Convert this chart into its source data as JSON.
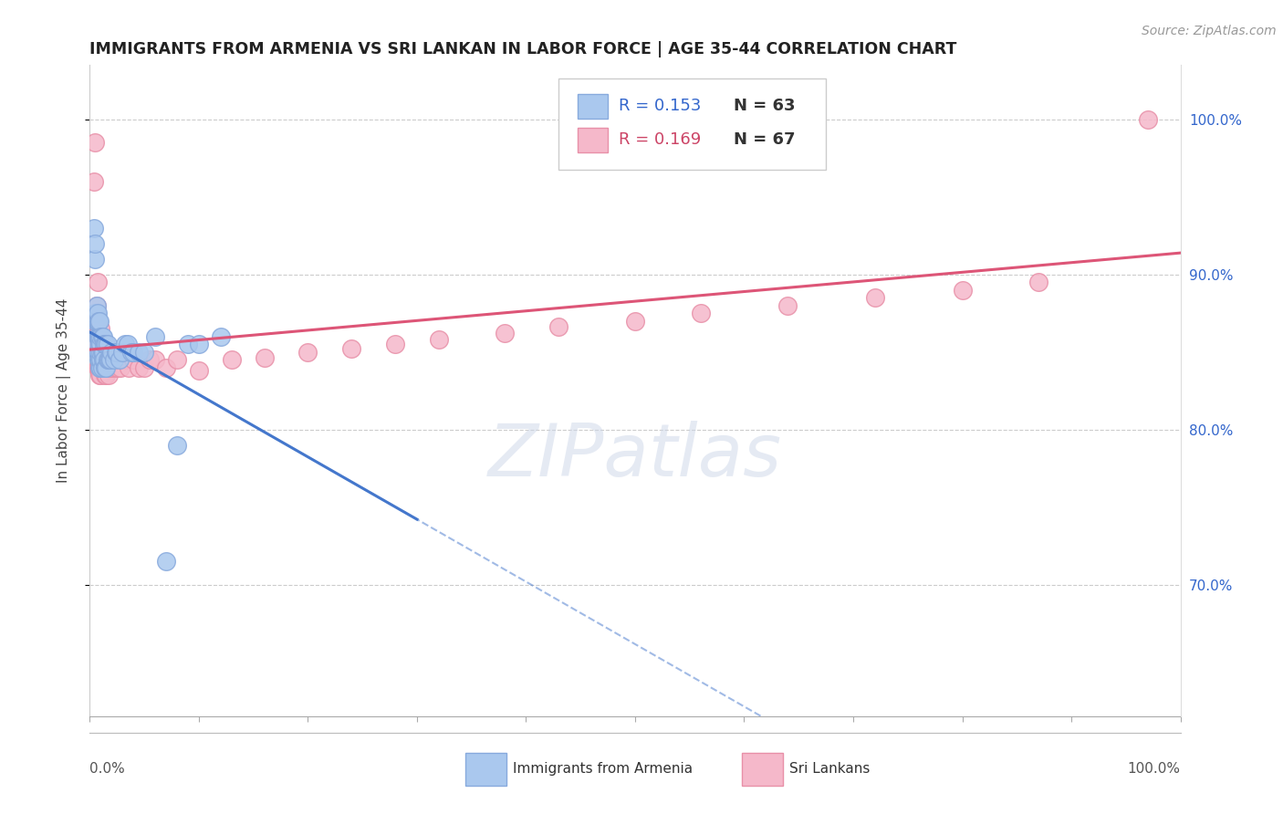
{
  "title": "IMMIGRANTS FROM ARMENIA VS SRI LANKAN IN LABOR FORCE | AGE 35-44 CORRELATION CHART",
  "source": "Source: ZipAtlas.com",
  "ylabel": "In Labor Force | Age 35-44",
  "xlim": [
    0.0,
    1.0
  ],
  "ylim": [
    0.615,
    1.035
  ],
  "yticks": [
    0.7,
    0.8,
    0.9,
    1.0
  ],
  "ytick_labels": [
    "70.0%",
    "80.0%",
    "90.0%",
    "100.0%"
  ],
  "legend_r1": "R = 0.153",
  "legend_n1": "N = 63",
  "legend_r2": "R = 0.169",
  "legend_n2": "N = 67",
  "armenia_color": "#aac8ee",
  "srilanka_color": "#f5b8ca",
  "armenia_edge": "#88aadd",
  "srilanka_edge": "#e890a8",
  "trend_blue": "#4477cc",
  "trend_pink": "#dd5577",
  "watermark": "ZIPatlas",
  "armenia_x": [
    0.003,
    0.004,
    0.005,
    0.005,
    0.005,
    0.005,
    0.006,
    0.006,
    0.006,
    0.007,
    0.007,
    0.007,
    0.007,
    0.008,
    0.008,
    0.008,
    0.008,
    0.008,
    0.009,
    0.009,
    0.009,
    0.009,
    0.009,
    0.01,
    0.01,
    0.01,
    0.01,
    0.01,
    0.011,
    0.011,
    0.011,
    0.012,
    0.012,
    0.012,
    0.013,
    0.013,
    0.014,
    0.014,
    0.015,
    0.015,
    0.016,
    0.016,
    0.017,
    0.018,
    0.019,
    0.02,
    0.022,
    0.024,
    0.025,
    0.027,
    0.03,
    0.032,
    0.035,
    0.038,
    0.04,
    0.045,
    0.05,
    0.06,
    0.07,
    0.08,
    0.09,
    0.1,
    0.12
  ],
  "armenia_y": [
    0.855,
    0.93,
    0.91,
    0.875,
    0.92,
    0.87,
    0.87,
    0.875,
    0.88,
    0.85,
    0.87,
    0.86,
    0.875,
    0.845,
    0.85,
    0.86,
    0.86,
    0.87,
    0.84,
    0.845,
    0.855,
    0.86,
    0.87,
    0.84,
    0.845,
    0.85,
    0.855,
    0.86,
    0.84,
    0.85,
    0.86,
    0.845,
    0.85,
    0.86,
    0.845,
    0.855,
    0.84,
    0.855,
    0.84,
    0.855,
    0.845,
    0.855,
    0.845,
    0.845,
    0.845,
    0.85,
    0.845,
    0.85,
    0.85,
    0.845,
    0.85,
    0.855,
    0.855,
    0.85,
    0.85,
    0.85,
    0.85,
    0.86,
    0.715,
    0.79,
    0.855,
    0.855,
    0.86
  ],
  "srilanka_x": [
    0.003,
    0.004,
    0.004,
    0.005,
    0.005,
    0.005,
    0.006,
    0.006,
    0.006,
    0.007,
    0.007,
    0.007,
    0.007,
    0.008,
    0.008,
    0.008,
    0.009,
    0.009,
    0.009,
    0.009,
    0.01,
    0.01,
    0.01,
    0.01,
    0.011,
    0.011,
    0.012,
    0.012,
    0.013,
    0.013,
    0.014,
    0.015,
    0.016,
    0.017,
    0.018,
    0.019,
    0.02,
    0.022,
    0.024,
    0.026,
    0.028,
    0.03,
    0.033,
    0.036,
    0.04,
    0.045,
    0.05,
    0.055,
    0.06,
    0.07,
    0.08,
    0.1,
    0.13,
    0.16,
    0.2,
    0.24,
    0.28,
    0.32,
    0.38,
    0.43,
    0.5,
    0.56,
    0.64,
    0.72,
    0.8,
    0.87,
    0.97
  ],
  "srilanka_y": [
    0.87,
    0.87,
    0.96,
    0.875,
    0.985,
    0.87,
    0.87,
    0.875,
    0.88,
    0.84,
    0.855,
    0.87,
    0.895,
    0.84,
    0.855,
    0.87,
    0.835,
    0.84,
    0.85,
    0.86,
    0.835,
    0.845,
    0.855,
    0.865,
    0.84,
    0.85,
    0.84,
    0.855,
    0.84,
    0.85,
    0.835,
    0.835,
    0.84,
    0.835,
    0.84,
    0.84,
    0.84,
    0.845,
    0.84,
    0.84,
    0.84,
    0.845,
    0.845,
    0.84,
    0.845,
    0.84,
    0.84,
    0.845,
    0.845,
    0.84,
    0.845,
    0.838,
    0.845,
    0.846,
    0.85,
    0.852,
    0.855,
    0.858,
    0.862,
    0.866,
    0.87,
    0.875,
    0.88,
    0.885,
    0.89,
    0.895,
    1.0
  ],
  "armenia_color_legend": "#aac8ee",
  "srilanka_color_legend": "#f5b8ca"
}
